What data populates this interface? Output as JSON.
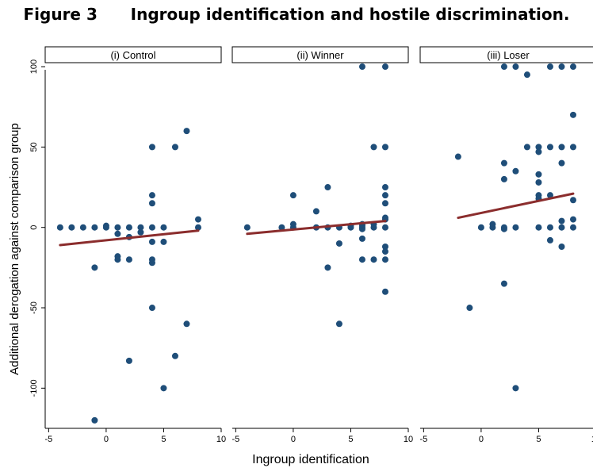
{
  "figure": {
    "label": "Figure 3",
    "title": "Ingroup identification and hostile discrimination."
  },
  "chart_data": {
    "type": "scatter",
    "xlabel": "Ingroup identification",
    "ylabel": "Additional derogation against comparison group",
    "x_ticks": [
      "-5",
      "0",
      "5",
      "10"
    ],
    "y_ticks": [
      "100",
      "50",
      "0",
      "-50",
      "-100"
    ],
    "xlim": [
      -5.3,
      10
    ],
    "ylim": [
      -125,
      102
    ],
    "grid": false,
    "colors": {
      "points": "#1f4e79",
      "fit": "#8b2d2d"
    },
    "panels": [
      {
        "label": "(i) Control",
        "fit": {
          "x": [
            -4,
            8
          ],
          "y": [
            -11,
            -2
          ]
        },
        "points": [
          [
            -4,
            0
          ],
          [
            -3,
            0
          ],
          [
            -2,
            0
          ],
          [
            -1,
            0
          ],
          [
            0,
            0
          ],
          [
            0,
            1
          ],
          [
            1,
            0
          ],
          [
            2,
            0
          ],
          [
            3,
            0
          ],
          [
            4,
            0
          ],
          [
            5,
            0
          ],
          [
            8,
            0
          ],
          [
            8,
            5
          ],
          [
            1,
            -4
          ],
          [
            2,
            -6
          ],
          [
            3,
            -3
          ],
          [
            1,
            -18
          ],
          [
            1,
            -20
          ],
          [
            2,
            -20
          ],
          [
            4,
            -9
          ],
          [
            5,
            -9
          ],
          [
            4,
            -20
          ],
          [
            4,
            -22
          ],
          [
            -1,
            -25
          ],
          [
            4,
            15
          ],
          [
            4,
            20
          ],
          [
            4,
            50
          ],
          [
            6,
            50
          ],
          [
            7,
            60
          ],
          [
            4,
            -50
          ],
          [
            7,
            -60
          ],
          [
            6,
            -80
          ],
          [
            2,
            -83
          ],
          [
            5,
            -100
          ],
          [
            -1,
            -120
          ]
        ]
      },
      {
        "label": "(ii) Winner",
        "fit": {
          "x": [
            -4,
            8
          ],
          "y": [
            -4,
            4
          ]
        },
        "points": [
          [
            -4,
            0
          ],
          [
            -1,
            0
          ],
          [
            0,
            0
          ],
          [
            0,
            2
          ],
          [
            0,
            20
          ],
          [
            2,
            0
          ],
          [
            2,
            10
          ],
          [
            3,
            0
          ],
          [
            3,
            25
          ],
          [
            3,
            -25
          ],
          [
            4,
            0
          ],
          [
            4,
            -10
          ],
          [
            4,
            -60
          ],
          [
            5,
            0
          ],
          [
            5,
            1
          ],
          [
            6,
            0
          ],
          [
            6,
            -1
          ],
          [
            6,
            1
          ],
          [
            6,
            2
          ],
          [
            6,
            -7
          ],
          [
            6,
            -20
          ],
          [
            6,
            100
          ],
          [
            7,
            0
          ],
          [
            7,
            2
          ],
          [
            7,
            -20
          ],
          [
            7,
            50
          ],
          [
            8,
            0
          ],
          [
            8,
            5
          ],
          [
            8,
            6
          ],
          [
            8,
            15
          ],
          [
            8,
            20
          ],
          [
            8,
            25
          ],
          [
            8,
            -12
          ],
          [
            8,
            -15
          ],
          [
            8,
            -20
          ],
          [
            8,
            -40
          ],
          [
            8,
            50
          ],
          [
            8,
            100
          ]
        ]
      },
      {
        "label": "(iii) Loser",
        "fit": {
          "x": [
            -2,
            8
          ],
          "y": [
            6,
            21
          ]
        },
        "points": [
          [
            -2,
            44
          ],
          [
            -1,
            -50
          ],
          [
            0,
            0
          ],
          [
            1,
            0
          ],
          [
            1,
            2
          ],
          [
            2,
            0
          ],
          [
            2,
            -1
          ],
          [
            2,
            30
          ],
          [
            2,
            40
          ],
          [
            2,
            -35
          ],
          [
            2,
            100
          ],
          [
            3,
            0
          ],
          [
            3,
            35
          ],
          [
            3,
            -100
          ],
          [
            3,
            100
          ],
          [
            4,
            95
          ],
          [
            4,
            50
          ],
          [
            5,
            0
          ],
          [
            5,
            20
          ],
          [
            5,
            18
          ],
          [
            5,
            28
          ],
          [
            5,
            33
          ],
          [
            5,
            50
          ],
          [
            5,
            47
          ],
          [
            6,
            0
          ],
          [
            6,
            20
          ],
          [
            6,
            50
          ],
          [
            6,
            -8
          ],
          [
            6,
            100
          ],
          [
            7,
            0
          ],
          [
            7,
            4
          ],
          [
            7,
            40
          ],
          [
            7,
            50
          ],
          [
            7,
            -12
          ],
          [
            7,
            100
          ],
          [
            8,
            0
          ],
          [
            8,
            5
          ],
          [
            8,
            17
          ],
          [
            8,
            50
          ],
          [
            8,
            70
          ],
          [
            8,
            100
          ]
        ]
      }
    ]
  }
}
